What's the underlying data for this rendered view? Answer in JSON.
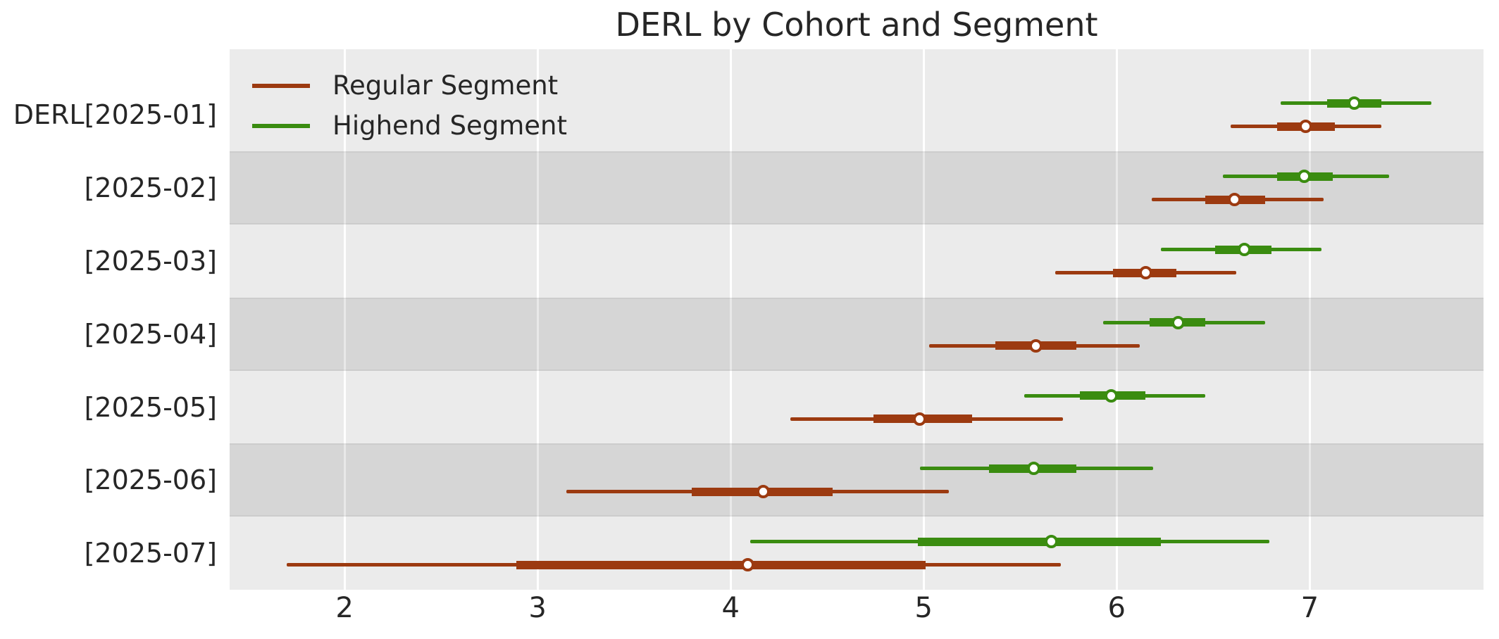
{
  "title": "DERL by Cohort and Segment",
  "legend": {
    "items": [
      {
        "label": "Regular Segment",
        "color": "#9c3a10"
      },
      {
        "label": "Highend Segment",
        "color": "#3a8c10"
      }
    ]
  },
  "colors": {
    "panel_background": "#ebebeb",
    "band_shade": "#d5d5d5",
    "gridline": "#ffffff",
    "regular_segment": "#9c3a10",
    "highend_segment": "#3a8c10",
    "text": "#262626",
    "marker_fill": "#ffffff"
  },
  "chart_data": {
    "type": "forest_interval",
    "title": "DERL by Cohort and Segment",
    "categories": [
      "DERL[2025-01]",
      "[2025-02]",
      "[2025-03]",
      "[2025-04]",
      "[2025-05]",
      "[2025-06]",
      "[2025-07]"
    ],
    "xlabel": "",
    "ylabel": "",
    "xlim": [
      1.405,
      7.9
    ],
    "xticks": [
      2,
      3,
      4,
      5,
      6,
      7
    ],
    "grid": "vertical-white",
    "row_shading": "alternating",
    "legend_position": "upper-left-inside",
    "series": [
      {
        "name": "Regular Segment",
        "color": "#9c3a10",
        "row_offset": "below-center",
        "intervals": [
          {
            "low": 6.59,
            "q1": 6.83,
            "median": 6.98,
            "q3": 7.13,
            "high": 7.37
          },
          {
            "low": 6.18,
            "q1": 6.46,
            "median": 6.61,
            "q3": 6.77,
            "high": 7.07
          },
          {
            "low": 5.68,
            "q1": 5.98,
            "median": 6.15,
            "q3": 6.31,
            "high": 6.62
          },
          {
            "low": 5.03,
            "q1": 5.37,
            "median": 5.58,
            "q3": 5.79,
            "high": 6.12
          },
          {
            "low": 4.31,
            "q1": 4.74,
            "median": 4.98,
            "q3": 5.25,
            "high": 5.72
          },
          {
            "low": 3.15,
            "q1": 3.8,
            "median": 4.17,
            "q3": 4.53,
            "high": 5.13
          },
          {
            "low": 1.7,
            "q1": 2.89,
            "median": 4.09,
            "q3": 5.01,
            "high": 5.71
          }
        ]
      },
      {
        "name": "Highend Segment",
        "color": "#3a8c10",
        "row_offset": "above-center",
        "intervals": [
          {
            "low": 6.85,
            "q1": 7.09,
            "median": 7.23,
            "q3": 7.37,
            "high": 7.63
          },
          {
            "low": 6.55,
            "q1": 6.83,
            "median": 6.97,
            "q3": 7.12,
            "high": 7.41
          },
          {
            "low": 6.23,
            "q1": 6.51,
            "median": 6.66,
            "q3": 6.8,
            "high": 7.06
          },
          {
            "low": 5.93,
            "q1": 6.17,
            "median": 6.32,
            "q3": 6.46,
            "high": 6.77
          },
          {
            "low": 5.52,
            "q1": 5.81,
            "median": 5.97,
            "q3": 6.15,
            "high": 6.46
          },
          {
            "low": 4.98,
            "q1": 5.34,
            "median": 5.57,
            "q3": 5.79,
            "high": 6.19
          },
          {
            "low": 4.1,
            "q1": 4.97,
            "median": 5.66,
            "q3": 6.23,
            "high": 6.79
          }
        ]
      }
    ]
  }
}
